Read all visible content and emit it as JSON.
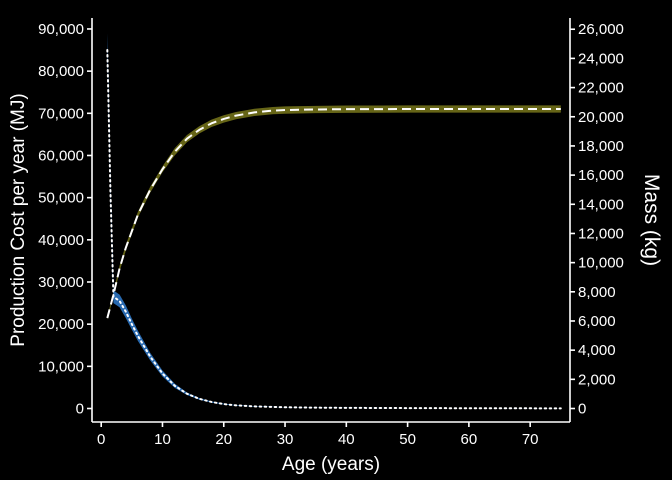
{
  "chart_data": {
    "type": "line",
    "title": "",
    "xlabel": "Age (years)",
    "ylabel_left": "Production Cost per year (MJ)",
    "ylabel_right": "Mass (kg)",
    "xlim": [
      -1.5,
      76.5
    ],
    "ylim_left": [
      -3200,
      92600
    ],
    "ylim_right": [
      -925,
      26770
    ],
    "x_ticks": [
      0,
      10,
      20,
      30,
      40,
      50,
      60,
      70
    ],
    "x_tick_labels": [
      "0",
      "10",
      "20",
      "30",
      "40",
      "50",
      "60",
      "70"
    ],
    "y_left_ticks": [
      0,
      10000,
      20000,
      30000,
      40000,
      50000,
      60000,
      70000,
      80000,
      90000
    ],
    "y_left_tick_labels": [
      "0",
      "10,000",
      "20,000",
      "30,000",
      "40,000",
      "50,000",
      "60,000",
      "70,000",
      "80,000",
      "90,000"
    ],
    "y_right_ticks": [
      0,
      2000,
      4000,
      6000,
      8000,
      10000,
      12000,
      14000,
      16000,
      18000,
      20000,
      22000,
      24000,
      26000
    ],
    "y_right_tick_labels": [
      "0",
      "2,000",
      "4,000",
      "6,000",
      "8,000",
      "10,000",
      "12,000",
      "14,000",
      "16,000",
      "18,000",
      "20,000",
      "22,000",
      "24,000",
      "26,000"
    ],
    "grid": false,
    "series": [
      {
        "role": "mass-median",
        "axis": "right",
        "line_style": "dashed",
        "color": "#ffffff",
        "x": [
          1,
          2,
          3,
          4,
          6,
          8,
          10,
          12,
          14,
          16,
          18,
          20,
          22,
          25,
          28,
          30,
          35,
          40,
          50,
          60,
          75
        ],
        "y": [
          6200,
          7800,
          9600,
          11000,
          13300,
          15000,
          16400,
          17600,
          18500,
          19100,
          19550,
          19850,
          20080,
          20300,
          20420,
          20460,
          20500,
          20520,
          20530,
          20530,
          20530
        ],
        "lower": [
          6100,
          7650,
          9400,
          10800,
          13100,
          14800,
          16200,
          17350,
          18250,
          18850,
          19300,
          19600,
          19830,
          20050,
          20170,
          20210,
          20250,
          20270,
          20280,
          20280,
          20280
        ],
        "upper": [
          6300,
          7950,
          9800,
          11200,
          13500,
          15200,
          16600,
          17850,
          18750,
          19350,
          19800,
          20100,
          20330,
          20550,
          20670,
          20710,
          20750,
          20770,
          20780,
          20780,
          20780
        ],
        "band_color": "#6b6a18"
      },
      {
        "role": "production-cost-median",
        "axis": "left",
        "line_style": "dotted",
        "color": "#ffffff",
        "x": [
          1,
          1.5,
          2,
          3,
          4,
          5,
          6,
          8,
          10,
          12,
          14,
          16,
          18,
          20,
          22,
          25,
          30,
          35,
          40,
          50,
          60,
          75
        ],
        "y": [
          85000,
          52000,
          26500,
          25500,
          23000,
          20000,
          17200,
          12300,
          8300,
          5400,
          3500,
          2300,
          1550,
          1050,
          750,
          500,
          300,
          200,
          150,
          100,
          60,
          40
        ],
        "lower": [
          85000,
          52000,
          25000,
          24000,
          21500,
          18700,
          16000,
          11400,
          7600,
          4900,
          3200,
          2100,
          1400,
          950,
          680,
          450,
          270,
          180,
          130,
          80,
          50,
          30
        ],
        "upper": [
          89000,
          54000,
          28000,
          27000,
          24500,
          21300,
          18400,
          13200,
          9000,
          5900,
          3800,
          2500,
          1700,
          1150,
          820,
          560,
          340,
          230,
          170,
          120,
          75,
          50
        ],
        "band_color": "#2a6fb8"
      }
    ]
  }
}
